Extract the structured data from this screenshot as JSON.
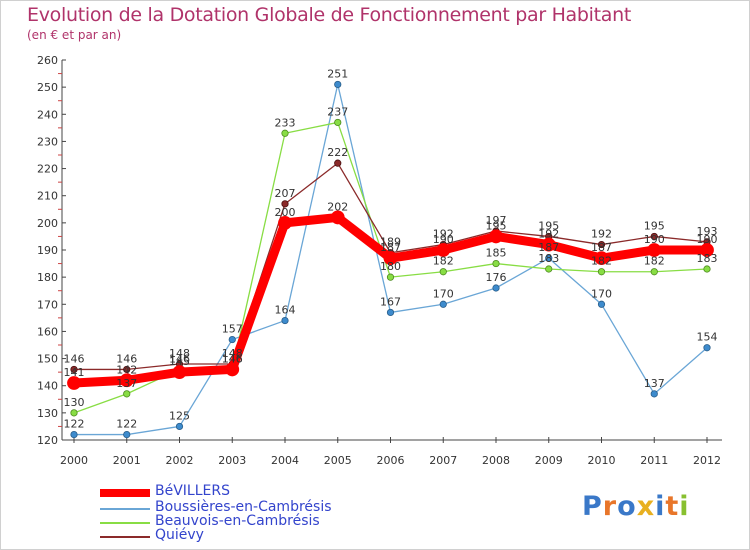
{
  "chart_data": {
    "type": "line",
    "title": "Evolution de la Dotation Globale de Fonctionnement par Habitant",
    "subtitle": "(en € et par an)",
    "xlabel": "",
    "ylabel": "",
    "categories": [
      "2000",
      "2001",
      "2002",
      "2003",
      "2004",
      "2005",
      "2006",
      "2007",
      "2008",
      "2009",
      "2010",
      "2011",
      "2012"
    ],
    "ylim": [
      120,
      260
    ],
    "yticks": [
      120,
      130,
      140,
      150,
      160,
      170,
      180,
      190,
      200,
      210,
      220,
      230,
      240,
      250,
      260
    ],
    "grid": false,
    "legend_position": "bottom-left",
    "series": [
      {
        "name": "BéVILLERS",
        "color": "#ff0000",
        "values": [
          141,
          142,
          145,
          146,
          200,
          202,
          187,
          190,
          195,
          192,
          187,
          190,
          190
        ]
      },
      {
        "name": "Boussières-en-Cambrésis",
        "color": "#6aa6d6",
        "values": [
          122,
          122,
          125,
          157,
          164,
          251,
          167,
          170,
          176,
          187,
          170,
          137,
          154
        ]
      },
      {
        "name": "Beauvois-en-Cambrésis",
        "color": "#88dd44",
        "values": [
          130,
          137,
          146,
          146,
          233,
          237,
          180,
          182,
          185,
          183,
          182,
          182,
          183
        ]
      },
      {
        "name": "Quiévy",
        "color": "#8b2a2a",
        "values": [
          146,
          146,
          148,
          148,
          207,
          222,
          189,
          192,
          197,
          195,
          192,
          195,
          193
        ]
      }
    ]
  },
  "legend": {
    "items": [
      "BéVILLERS",
      "Boussières-en-Cambrésis",
      "Beauvois-en-Cambrésis",
      "Quiévy"
    ],
    "text_color": "#3344cc"
  },
  "logo": {
    "text": "Proxiti"
  }
}
